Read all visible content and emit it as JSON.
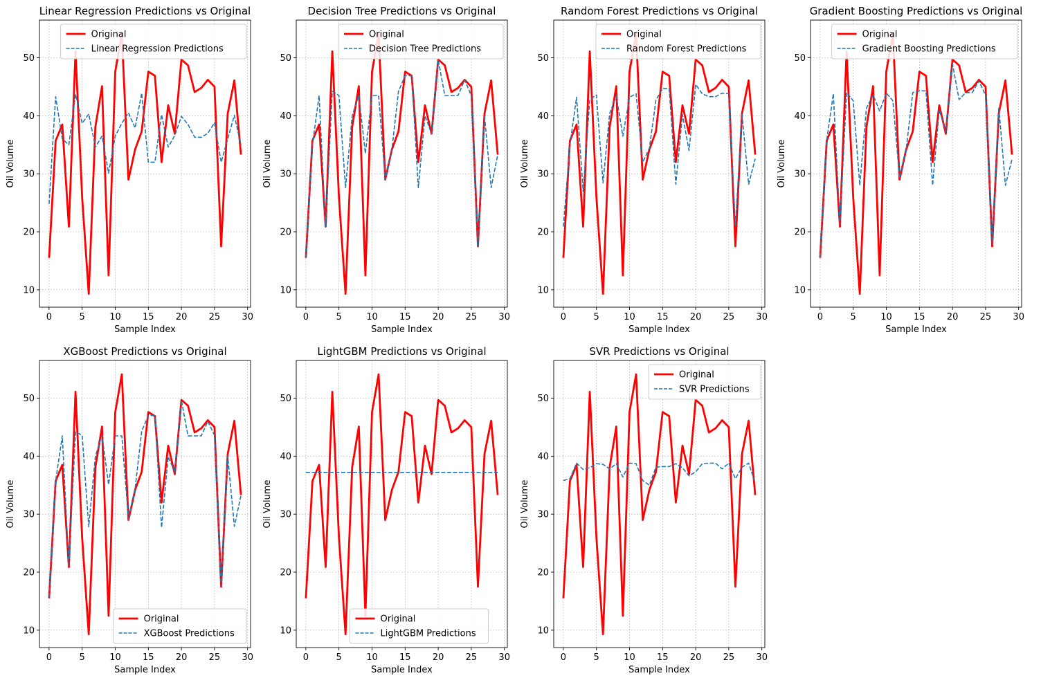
{
  "figure": {
    "colors": {
      "original": "#ff0000",
      "prediction": "#1f77b4",
      "grid": "#b0b0b0"
    },
    "shared_original": [
      15.5,
      35.7,
      38.5,
      20.9,
      51.1,
      25.9,
      9.3,
      38.1,
      45.1,
      12.5,
      47.6,
      54.1,
      29.0,
      34.2,
      37.3,
      47.6,
      46.9,
      32.0,
      41.8,
      36.9,
      49.7,
      48.7,
      44.1,
      44.8,
      46.2,
      45.0,
      17.5,
      40.4,
      46.1,
      33.3
    ]
  },
  "chart_data": [
    {
      "type": "line",
      "title": "Linear Regression Predictions vs Original",
      "xlabel": "Sample Index",
      "ylabel": "Oil Volume",
      "xlim": [
        -1.45,
        30.45
      ],
      "ylim": [
        7.0,
        56.5
      ],
      "xticks": [
        0,
        5,
        10,
        15,
        20,
        25,
        30
      ],
      "yticks": [
        10,
        20,
        30,
        40,
        50
      ],
      "grid": true,
      "legend_loc": "upper-right",
      "x": [
        0,
        1,
        2,
        3,
        4,
        5,
        6,
        7,
        8,
        9,
        10,
        11,
        12,
        13,
        14,
        15,
        16,
        17,
        18,
        19,
        20,
        21,
        22,
        23,
        24,
        25,
        26,
        27,
        28,
        29
      ],
      "series": [
        {
          "name": "Original",
          "style": "solid",
          "values": [
            15.5,
            35.7,
            38.5,
            20.9,
            51.1,
            25.9,
            9.3,
            38.1,
            45.1,
            12.5,
            47.6,
            54.1,
            29.0,
            34.2,
            37.3,
            47.6,
            46.9,
            32.0,
            41.8,
            36.9,
            49.7,
            48.7,
            44.1,
            44.8,
            46.2,
            45.0,
            17.5,
            40.4,
            46.1,
            33.3
          ]
        },
        {
          "name": "Linear Regression Predictions",
          "style": "dashed",
          "values": [
            24.8,
            43.3,
            36.0,
            35.0,
            43.7,
            38.7,
            40.3,
            34.6,
            36.5,
            30.1,
            36.5,
            38.7,
            40.5,
            37.9,
            43.9,
            32.0,
            32.0,
            40.2,
            34.6,
            36.6,
            39.9,
            38.5,
            36.3,
            36.3,
            37.0,
            38.8,
            32.0,
            36.0,
            40.1,
            34.9
          ]
        }
      ]
    },
    {
      "type": "line",
      "title": "Decision Tree Predictions vs Original",
      "xlabel": "Sample Index",
      "ylabel": "Oil Volume",
      "xlim": [
        -1.45,
        30.45
      ],
      "ylim": [
        7.0,
        56.5
      ],
      "xticks": [
        0,
        5,
        10,
        15,
        20,
        25,
        30
      ],
      "yticks": [
        10,
        20,
        30,
        40,
        50
      ],
      "grid": true,
      "legend_loc": "upper-right",
      "x": [
        0,
        1,
        2,
        3,
        4,
        5,
        6,
        7,
        8,
        9,
        10,
        11,
        12,
        13,
        14,
        15,
        16,
        17,
        18,
        19,
        20,
        21,
        22,
        23,
        24,
        25,
        26,
        27,
        28,
        29
      ],
      "series": [
        {
          "name": "Original",
          "style": "solid",
          "values": [
            15.5,
            35.7,
            38.5,
            20.9,
            51.1,
            25.9,
            9.3,
            38.1,
            45.1,
            12.5,
            47.6,
            54.1,
            29.0,
            34.2,
            37.3,
            47.6,
            46.9,
            32.0,
            41.8,
            36.9,
            49.7,
            48.7,
            44.1,
            44.8,
            46.2,
            45.0,
            17.5,
            40.4,
            46.1,
            33.3
          ]
        },
        {
          "name": "Decision Tree Predictions",
          "style": "dashed",
          "values": [
            15.5,
            35.0,
            43.5,
            20.9,
            44.2,
            43.5,
            27.6,
            40.0,
            43.5,
            33.5,
            43.5,
            43.5,
            29.0,
            34.2,
            44.2,
            46.9,
            46.9,
            27.6,
            40.0,
            36.9,
            49.7,
            43.5,
            43.5,
            43.5,
            46.2,
            43.5,
            17.5,
            40.0,
            27.6,
            33.3
          ]
        }
      ]
    },
    {
      "type": "line",
      "title": "Random Forest Predictions vs Original",
      "xlabel": "Sample Index",
      "ylabel": "Oil Volume",
      "xlim": [
        -1.45,
        30.45
      ],
      "ylim": [
        7.0,
        56.5
      ],
      "xticks": [
        0,
        5,
        10,
        15,
        20,
        25,
        30
      ],
      "yticks": [
        10,
        20,
        30,
        40,
        50
      ],
      "grid": true,
      "legend_loc": "upper-right",
      "x": [
        0,
        1,
        2,
        3,
        4,
        5,
        6,
        7,
        8,
        9,
        10,
        11,
        12,
        13,
        14,
        15,
        16,
        17,
        18,
        19,
        20,
        21,
        22,
        23,
        24,
        25,
        26,
        27,
        28,
        29
      ],
      "series": [
        {
          "name": "Original",
          "style": "solid",
          "values": [
            15.5,
            35.7,
            38.5,
            20.9,
            51.1,
            25.9,
            9.3,
            38.1,
            45.1,
            12.5,
            47.6,
            54.1,
            29.0,
            34.2,
            37.3,
            47.6,
            46.9,
            32.0,
            41.8,
            36.9,
            49.7,
            48.7,
            44.1,
            44.8,
            46.2,
            45.0,
            17.5,
            40.4,
            46.1,
            33.3
          ]
        },
        {
          "name": "Random Forest Predictions",
          "style": "dashed",
          "values": [
            20.9,
            35.0,
            43.2,
            27.0,
            42.8,
            43.6,
            28.4,
            40.4,
            43.4,
            36.5,
            43.2,
            43.8,
            32.0,
            34.4,
            42.7,
            44.7,
            44.7,
            28.2,
            40.2,
            34.0,
            45.4,
            43.8,
            43.3,
            43.3,
            43.9,
            43.8,
            21.0,
            40.3,
            28.2,
            32.6
          ]
        }
      ]
    },
    {
      "type": "line",
      "title": "Gradient Boosting Predictions vs Original",
      "xlabel": "Sample Index",
      "ylabel": "Oil Volume",
      "xlim": [
        -1.45,
        30.45
      ],
      "ylim": [
        7.0,
        56.5
      ],
      "xticks": [
        0,
        5,
        10,
        15,
        20,
        25,
        30
      ],
      "yticks": [
        10,
        20,
        30,
        40,
        50
      ],
      "grid": true,
      "legend_loc": "upper-right",
      "x": [
        0,
        1,
        2,
        3,
        4,
        5,
        6,
        7,
        8,
        9,
        10,
        11,
        12,
        13,
        14,
        15,
        16,
        17,
        18,
        19,
        20,
        21,
        22,
        23,
        24,
        25,
        26,
        27,
        28,
        29
      ],
      "series": [
        {
          "name": "Original",
          "style": "solid",
          "values": [
            15.5,
            35.7,
            38.5,
            20.9,
            51.1,
            25.9,
            9.3,
            38.1,
            45.1,
            12.5,
            47.6,
            54.1,
            29.0,
            34.2,
            37.3,
            47.6,
            46.9,
            32.0,
            41.8,
            36.9,
            49.7,
            48.7,
            44.1,
            44.8,
            46.2,
            45.0,
            17.5,
            40.4,
            46.1,
            33.3
          ]
        },
        {
          "name": "Gradient Boosting Predictions",
          "style": "dashed",
          "values": [
            15.6,
            35.8,
            43.8,
            21.2,
            44.0,
            42.6,
            28.0,
            41.3,
            43.6,
            40.8,
            43.9,
            42.6,
            29.3,
            34.2,
            44.0,
            44.3,
            44.3,
            28.0,
            41.0,
            37.3,
            49.0,
            42.8,
            44.0,
            44.0,
            46.0,
            43.5,
            17.8,
            41.5,
            28.0,
            32.5
          ]
        }
      ]
    },
    {
      "type": "line",
      "title": "XGBoost Predictions vs Original",
      "xlabel": "Sample Index",
      "ylabel": "Oil Volume",
      "xlim": [
        -1.45,
        30.45
      ],
      "ylim": [
        7.0,
        56.5
      ],
      "xticks": [
        0,
        5,
        10,
        15,
        20,
        25,
        30
      ],
      "yticks": [
        10,
        20,
        30,
        40,
        50
      ],
      "grid": true,
      "legend_loc": "lower-right",
      "x": [
        0,
        1,
        2,
        3,
        4,
        5,
        6,
        7,
        8,
        9,
        10,
        11,
        12,
        13,
        14,
        15,
        16,
        17,
        18,
        19,
        20,
        21,
        22,
        23,
        24,
        25,
        26,
        27,
        28,
        29
      ],
      "series": [
        {
          "name": "Original",
          "style": "solid",
          "values": [
            15.5,
            35.7,
            38.5,
            20.9,
            51.1,
            25.9,
            9.3,
            38.1,
            45.1,
            12.5,
            47.6,
            54.1,
            29.0,
            34.2,
            37.3,
            47.6,
            46.9,
            32.0,
            41.8,
            36.9,
            49.7,
            48.7,
            44.1,
            44.8,
            46.2,
            45.0,
            17.5,
            40.4,
            46.1,
            33.3
          ]
        },
        {
          "name": "XGBoost Predictions",
          "style": "dashed",
          "values": [
            15.7,
            35.7,
            43.5,
            21.0,
            44.2,
            43.6,
            27.8,
            40.0,
            43.6,
            35.1,
            43.5,
            43.5,
            29.1,
            34.4,
            44.3,
            47.0,
            47.0,
            27.7,
            39.9,
            37.3,
            49.6,
            43.5,
            43.5,
            43.5,
            46.0,
            43.6,
            17.6,
            40.0,
            27.9,
            33.2
          ]
        }
      ]
    },
    {
      "type": "line",
      "title": "LightGBM Predictions vs Original",
      "xlabel": "Sample Index",
      "ylabel": "Oil Volume",
      "xlim": [
        -1.45,
        30.45
      ],
      "ylim": [
        7.0,
        56.5
      ],
      "xticks": [
        0,
        5,
        10,
        15,
        20,
        25,
        30
      ],
      "yticks": [
        10,
        20,
        30,
        40,
        50
      ],
      "grid": true,
      "legend_loc": "lower-center",
      "x": [
        0,
        1,
        2,
        3,
        4,
        5,
        6,
        7,
        8,
        9,
        10,
        11,
        12,
        13,
        14,
        15,
        16,
        17,
        18,
        19,
        20,
        21,
        22,
        23,
        24,
        25,
        26,
        27,
        28,
        29
      ],
      "series": [
        {
          "name": "Original",
          "style": "solid",
          "values": [
            15.5,
            35.7,
            38.5,
            20.9,
            51.1,
            25.9,
            9.3,
            38.1,
            45.1,
            12.5,
            47.6,
            54.1,
            29.0,
            34.2,
            37.3,
            47.6,
            46.9,
            32.0,
            41.8,
            36.9,
            49.7,
            48.7,
            44.1,
            44.8,
            46.2,
            45.0,
            17.5,
            40.4,
            46.1,
            33.3
          ]
        },
        {
          "name": "LightGBM Predictions",
          "style": "dashed",
          "values": [
            37.2,
            37.2,
            37.2,
            37.2,
            37.2,
            37.2,
            37.2,
            37.2,
            37.2,
            37.2,
            37.2,
            37.2,
            37.2,
            37.2,
            37.2,
            37.2,
            37.2,
            37.2,
            37.2,
            37.2,
            37.2,
            37.2,
            37.2,
            37.2,
            37.2,
            37.2,
            37.2,
            37.2,
            37.2,
            37.2
          ]
        }
      ]
    },
    {
      "type": "line",
      "title": "SVR Predictions vs Original",
      "xlabel": "Sample Index",
      "ylabel": "Oil Volume",
      "xlim": [
        -1.45,
        30.45
      ],
      "ylim": [
        7.0,
        56.5
      ],
      "xticks": [
        0,
        5,
        10,
        15,
        20,
        25,
        30
      ],
      "yticks": [
        10,
        20,
        30,
        40,
        50
      ],
      "grid": true,
      "legend_loc": "upper-right",
      "x": [
        0,
        1,
        2,
        3,
        4,
        5,
        6,
        7,
        8,
        9,
        10,
        11,
        12,
        13,
        14,
        15,
        16,
        17,
        18,
        19,
        20,
        21,
        22,
        23,
        24,
        25,
        26,
        27,
        28,
        29
      ],
      "series": [
        {
          "name": "Original",
          "style": "solid",
          "values": [
            15.5,
            35.7,
            38.5,
            20.9,
            51.1,
            25.9,
            9.3,
            38.1,
            45.1,
            12.5,
            47.6,
            54.1,
            29.0,
            34.2,
            37.3,
            47.6,
            46.9,
            32.0,
            41.8,
            36.9,
            49.7,
            48.7,
            44.1,
            44.8,
            46.2,
            45.0,
            17.5,
            40.4,
            46.1,
            33.3
          ]
        },
        {
          "name": "SVR Predictions",
          "style": "dashed",
          "values": [
            35.8,
            36.1,
            38.8,
            37.7,
            38.0,
            38.7,
            38.6,
            37.8,
            38.7,
            36.4,
            38.8,
            38.7,
            35.8,
            35.0,
            38.1,
            38.2,
            38.2,
            38.7,
            38.0,
            36.6,
            37.3,
            38.7,
            38.8,
            38.8,
            37.8,
            38.8,
            36.1,
            38.1,
            38.8,
            35.4
          ]
        }
      ]
    }
  ]
}
